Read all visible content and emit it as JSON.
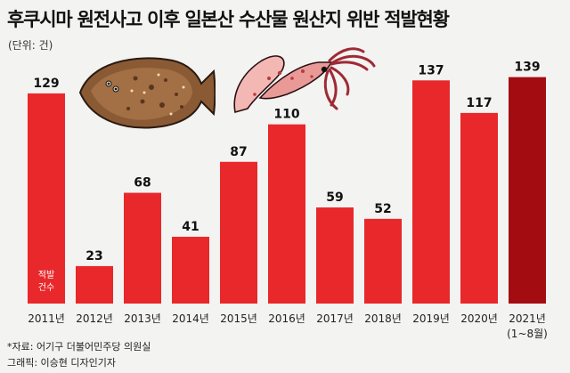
{
  "title": "후쿠시마 원전사고 이후 일본산 수산물 원산지 위반 적발현황",
  "unit_label": "(단위: 건)",
  "bar_inner_label": [
    "적발",
    "건수"
  ],
  "source_line": "*자료: 어기구 더불어민주당 의원실",
  "graphic_line": "그래픽: 이승현 디자인기자",
  "colors": {
    "bar": "#e8282b",
    "highlight_bar": "#a30d12",
    "background": "#f3f3f1"
  },
  "illustrations": [
    "flatfish-illustration",
    "squid-illustration"
  ],
  "chart_data": {
    "type": "bar",
    "categories": [
      "2011년",
      "2012년",
      "2013년",
      "2014년",
      "2015년",
      "2016년",
      "2017년",
      "2018년",
      "2019년",
      "2020년",
      "2021년"
    ],
    "category_sublabels": [
      "",
      "",
      "",
      "",
      "",
      "",
      "",
      "",
      "",
      "",
      "(1~8월)"
    ],
    "values": [
      129,
      23,
      68,
      41,
      87,
      110,
      59,
      52,
      137,
      117,
      139
    ],
    "highlight_index": 10,
    "ylim": [
      0,
      150
    ],
    "grid": false,
    "legend": "none"
  }
}
